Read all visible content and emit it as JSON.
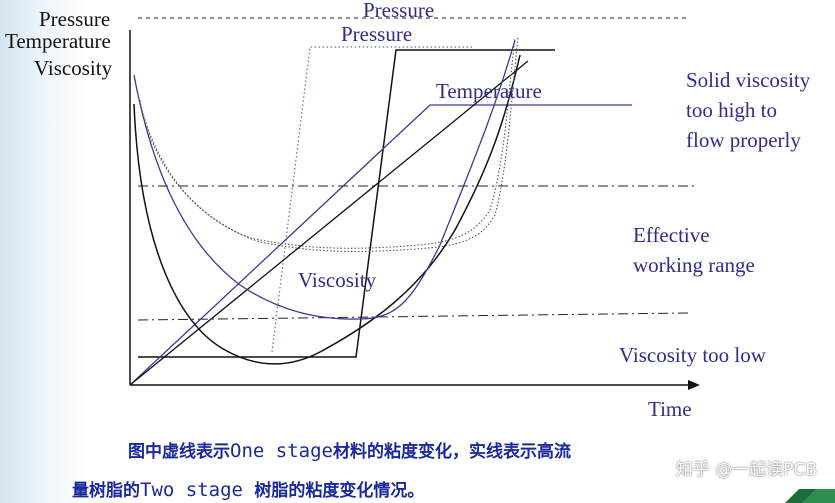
{
  "axis_labels": {
    "y_pressure": "Pressure",
    "y_temperature": "Temperature",
    "y_viscosity": "Viscosity",
    "x_time": "Time"
  },
  "curve_labels": {
    "pressure_top": "Pressure",
    "pressure_mid": "Pressure",
    "temperature": "Temperature",
    "viscosity": "Viscosity"
  },
  "zone_labels": {
    "solid": [
      "Solid viscosity",
      "too high to",
      "flow properly"
    ],
    "effective": [
      "Effective",
      "working range"
    ],
    "low": "Viscosity too low"
  },
  "caption": {
    "line1_part1": "图中虚线表示",
    "line1_mono": "One stage",
    "line1_part2": "材料的粘度变化，实线表示高流",
    "line2_part1": "量树脂的",
    "line2_mono": "Two stage ",
    "line2_part2": "树脂的粘度变化情况。"
  },
  "watermark": "知乎 @一起读PCB",
  "colors": {
    "black_line": "#111111",
    "blue_line": "#3a3a9a",
    "grey_dotted": "#555555",
    "caption": "#1a2a9e"
  }
}
